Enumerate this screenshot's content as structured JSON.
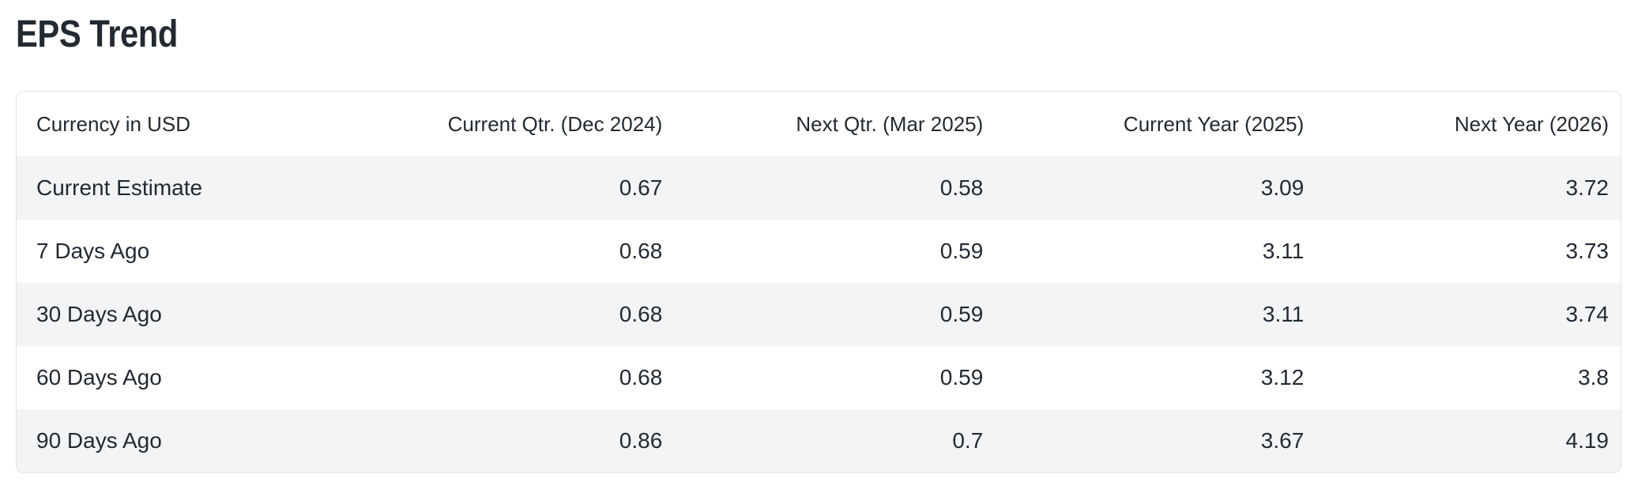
{
  "page": {
    "title": "EPS Trend"
  },
  "table": {
    "columns": [
      {
        "label": "Currency in USD",
        "align": "left"
      },
      {
        "label": "Current Qtr. (Dec 2024)",
        "align": "right"
      },
      {
        "label": "Next Qtr. (Mar 2025)",
        "align": "right"
      },
      {
        "label": "Current Year (2025)",
        "align": "right"
      },
      {
        "label": "Next Year (2026)",
        "align": "right"
      }
    ],
    "rows": [
      {
        "label": "Current Estimate",
        "values": [
          "0.67",
          "0.58",
          "3.09",
          "3.72"
        ]
      },
      {
        "label": "7 Days Ago",
        "values": [
          "0.68",
          "0.59",
          "3.11",
          "3.73"
        ]
      },
      {
        "label": "30 Days Ago",
        "values": [
          "0.68",
          "0.59",
          "3.11",
          "3.74"
        ]
      },
      {
        "label": "60 Days Ago",
        "values": [
          "0.68",
          "0.59",
          "3.12",
          "3.8"
        ]
      },
      {
        "label": "90 Days Ago",
        "values": [
          "0.86",
          "0.7",
          "3.67",
          "4.19"
        ]
      }
    ]
  },
  "colors": {
    "text": "#232a31",
    "stripe": "#f3f4f6",
    "card_border": "#e0e4e9",
    "background": "#ffffff"
  }
}
